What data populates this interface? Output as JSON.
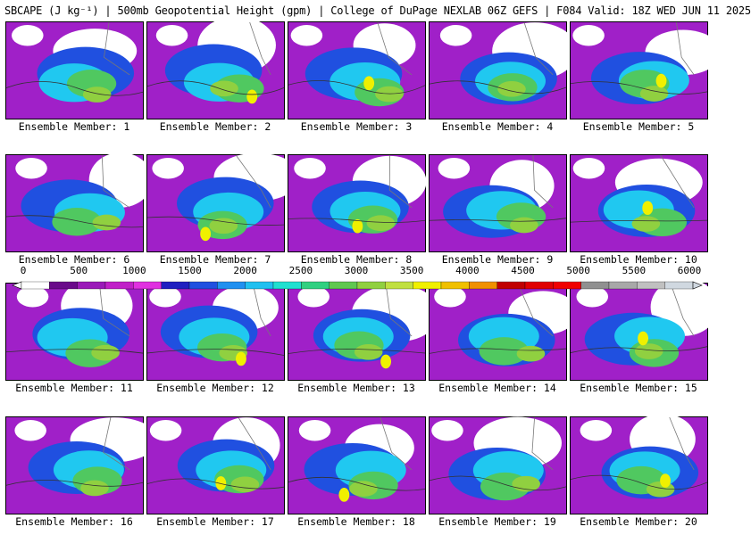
{
  "title": "SBCAPE (J kg⁻¹) | 500mb Geopotential Height (gpm) | College of DuPage NEXLAB 06Z GEFS | F084 Valid: 18Z WED JUN 11 2025",
  "panels": [
    {
      "label": "Ensemble Member: 1"
    },
    {
      "label": "Ensemble Member: 2"
    },
    {
      "label": "Ensemble Member: 3"
    },
    {
      "label": "Ensemble Member: 4"
    },
    {
      "label": "Ensemble Member: 5"
    },
    {
      "label": "Ensemble Member: 6"
    },
    {
      "label": "Ensemble Member: 7"
    },
    {
      "label": "Ensemble Member: 8"
    },
    {
      "label": "Ensemble Member: 9"
    },
    {
      "label": "Ensemble Member: 10"
    },
    {
      "label": "Ensemble Member: 11"
    },
    {
      "label": "Ensemble Member: 12"
    },
    {
      "label": "Ensemble Member: 13"
    },
    {
      "label": "Ensemble Member: 14"
    },
    {
      "label": "Ensemble Member: 15"
    },
    {
      "label": "Ensemble Member: 16"
    },
    {
      "label": "Ensemble Member: 17"
    },
    {
      "label": "Ensemble Member: 18"
    },
    {
      "label": "Ensemble Member: 19"
    },
    {
      "label": "Ensemble Member: 20"
    }
  ],
  "colorbar": {
    "ticks": [
      "0",
      "500",
      "1000",
      "1500",
      "2000",
      "2500",
      "3000",
      "3500",
      "4000",
      "4500",
      "5000",
      "5500",
      "6000"
    ],
    "colors": [
      "#ffffff",
      "#6a0a8a",
      "#9a1ab8",
      "#c020c8",
      "#e030e0",
      "#2020c0",
      "#2050e0",
      "#2090f0",
      "#20c0f0",
      "#20e0d0",
      "#30d080",
      "#60c850",
      "#90d040",
      "#c0e040",
      "#f0f000",
      "#f0c000",
      "#f09000",
      "#c00000",
      "#e00000",
      "#f00000",
      "#909090",
      "#a8a8a8",
      "#c0c0c0",
      "#d0d8e0"
    ]
  }
}
